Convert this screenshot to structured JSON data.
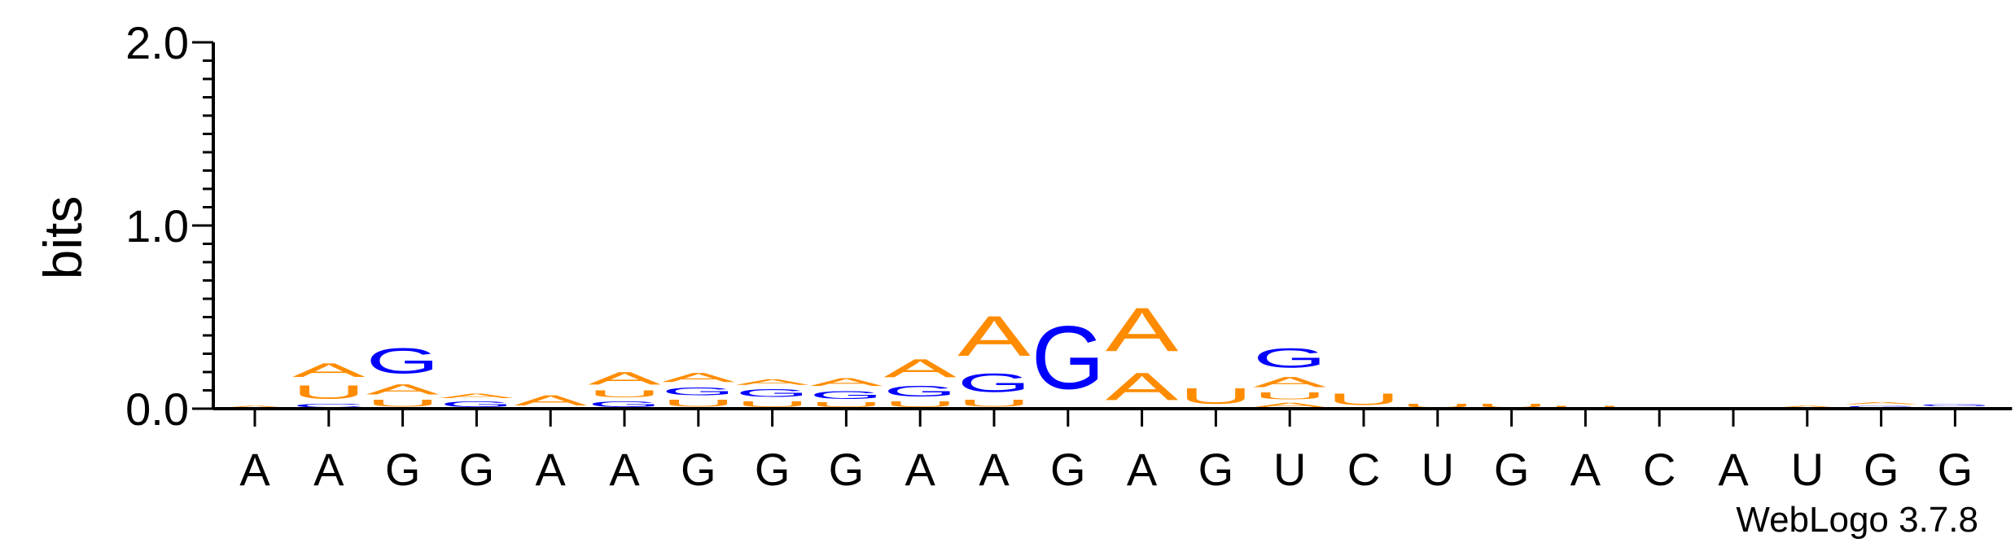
{
  "chart_data": {
    "type": "sequence-logo",
    "ylabel": "bits",
    "ylim": [
      0,
      2.0
    ],
    "yticks": [
      "0.0",
      "1.0",
      "2.0"
    ],
    "positions": [
      "A",
      "A",
      "G",
      "G",
      "A",
      "A",
      "G",
      "G",
      "G",
      "A",
      "A",
      "G",
      "A",
      "G",
      "U",
      "C",
      "U",
      "G",
      "A",
      "C",
      "A",
      "U",
      "G",
      "G"
    ],
    "colors": {
      "A": "#ff8c00",
      "U": "#ff8c00",
      "G": "#0000ff",
      "C": "#0000ff"
    },
    "columns": [
      [
        {
          "letter": "A",
          "bits": 0.02
        }
      ],
      [
        {
          "letter": "C",
          "bits": 0.03
        },
        {
          "letter": "U",
          "bits": 0.12
        },
        {
          "letter": "A",
          "bits": 0.12
        }
      ],
      [
        {
          "letter": "U",
          "bits": 0.06
        },
        {
          "letter": "A",
          "bits": 0.09
        },
        {
          "letter": "G",
          "bits": 0.22
        }
      ],
      [
        {
          "letter": "G",
          "bits": 0.05
        },
        {
          "letter": "A",
          "bits": 0.04
        }
      ],
      [
        {
          "letter": "A",
          "bits": 0.09
        }
      ],
      [
        {
          "letter": "G",
          "bits": 0.05
        },
        {
          "letter": "U",
          "bits": 0.06
        },
        {
          "letter": "A",
          "bits": 0.11
        }
      ],
      [
        {
          "letter": "U",
          "bits": 0.06
        },
        {
          "letter": "G",
          "bits": 0.07
        },
        {
          "letter": "A",
          "bits": 0.08
        }
      ],
      [
        {
          "letter": "U",
          "bits": 0.05
        },
        {
          "letter": "G",
          "bits": 0.07
        },
        {
          "letter": "A",
          "bits": 0.05
        }
      ],
      [
        {
          "letter": "U",
          "bits": 0.04
        },
        {
          "letter": "G",
          "bits": 0.07
        },
        {
          "letter": "A",
          "bits": 0.07
        }
      ],
      [
        {
          "letter": "U",
          "bits": 0.05
        },
        {
          "letter": "G",
          "bits": 0.09
        },
        {
          "letter": "A",
          "bits": 0.16
        }
      ],
      [
        {
          "letter": "U",
          "bits": 0.06
        },
        {
          "letter": "G",
          "bits": 0.16
        },
        {
          "letter": "A",
          "bits": 0.35
        }
      ],
      [
        {
          "letter": "G",
          "bits": 0.55
        }
      ],
      [
        {
          "letter": "A",
          "bits": 0.24
        },
        {
          "letter": "A",
          "bits": 0.38
        }
      ],
      [
        {
          "letter": "U",
          "bits": 0.14
        }
      ],
      [
        {
          "letter": "A",
          "bits": 0.04
        },
        {
          "letter": "U",
          "bits": 0.06
        },
        {
          "letter": "A",
          "bits": 0.09
        },
        {
          "letter": "G",
          "bits": 0.17
        }
      ],
      [
        {
          "letter": "U",
          "bits": 0.1
        }
      ],
      [
        {
          "letter": "U",
          "bits": 0.03
        }
      ],
      [
        {
          "letter": "U",
          "bits": 0.03
        }
      ],
      [
        {
          "letter": "U",
          "bits": 0.02
        }
      ],
      [
        {
          "letter": "U",
          "bits": 0.01
        }
      ],
      [
        {
          "letter": "U",
          "bits": 0.01
        }
      ],
      [
        {
          "letter": "A",
          "bits": 0.02
        }
      ],
      [
        {
          "letter": "G",
          "bits": 0.02
        },
        {
          "letter": "A",
          "bits": 0.02
        }
      ],
      [
        {
          "letter": "A",
          "bits": 0.01
        },
        {
          "letter": "G",
          "bits": 0.02
        }
      ]
    ]
  },
  "footer": {
    "credit": "WebLogo 3.7.8"
  }
}
